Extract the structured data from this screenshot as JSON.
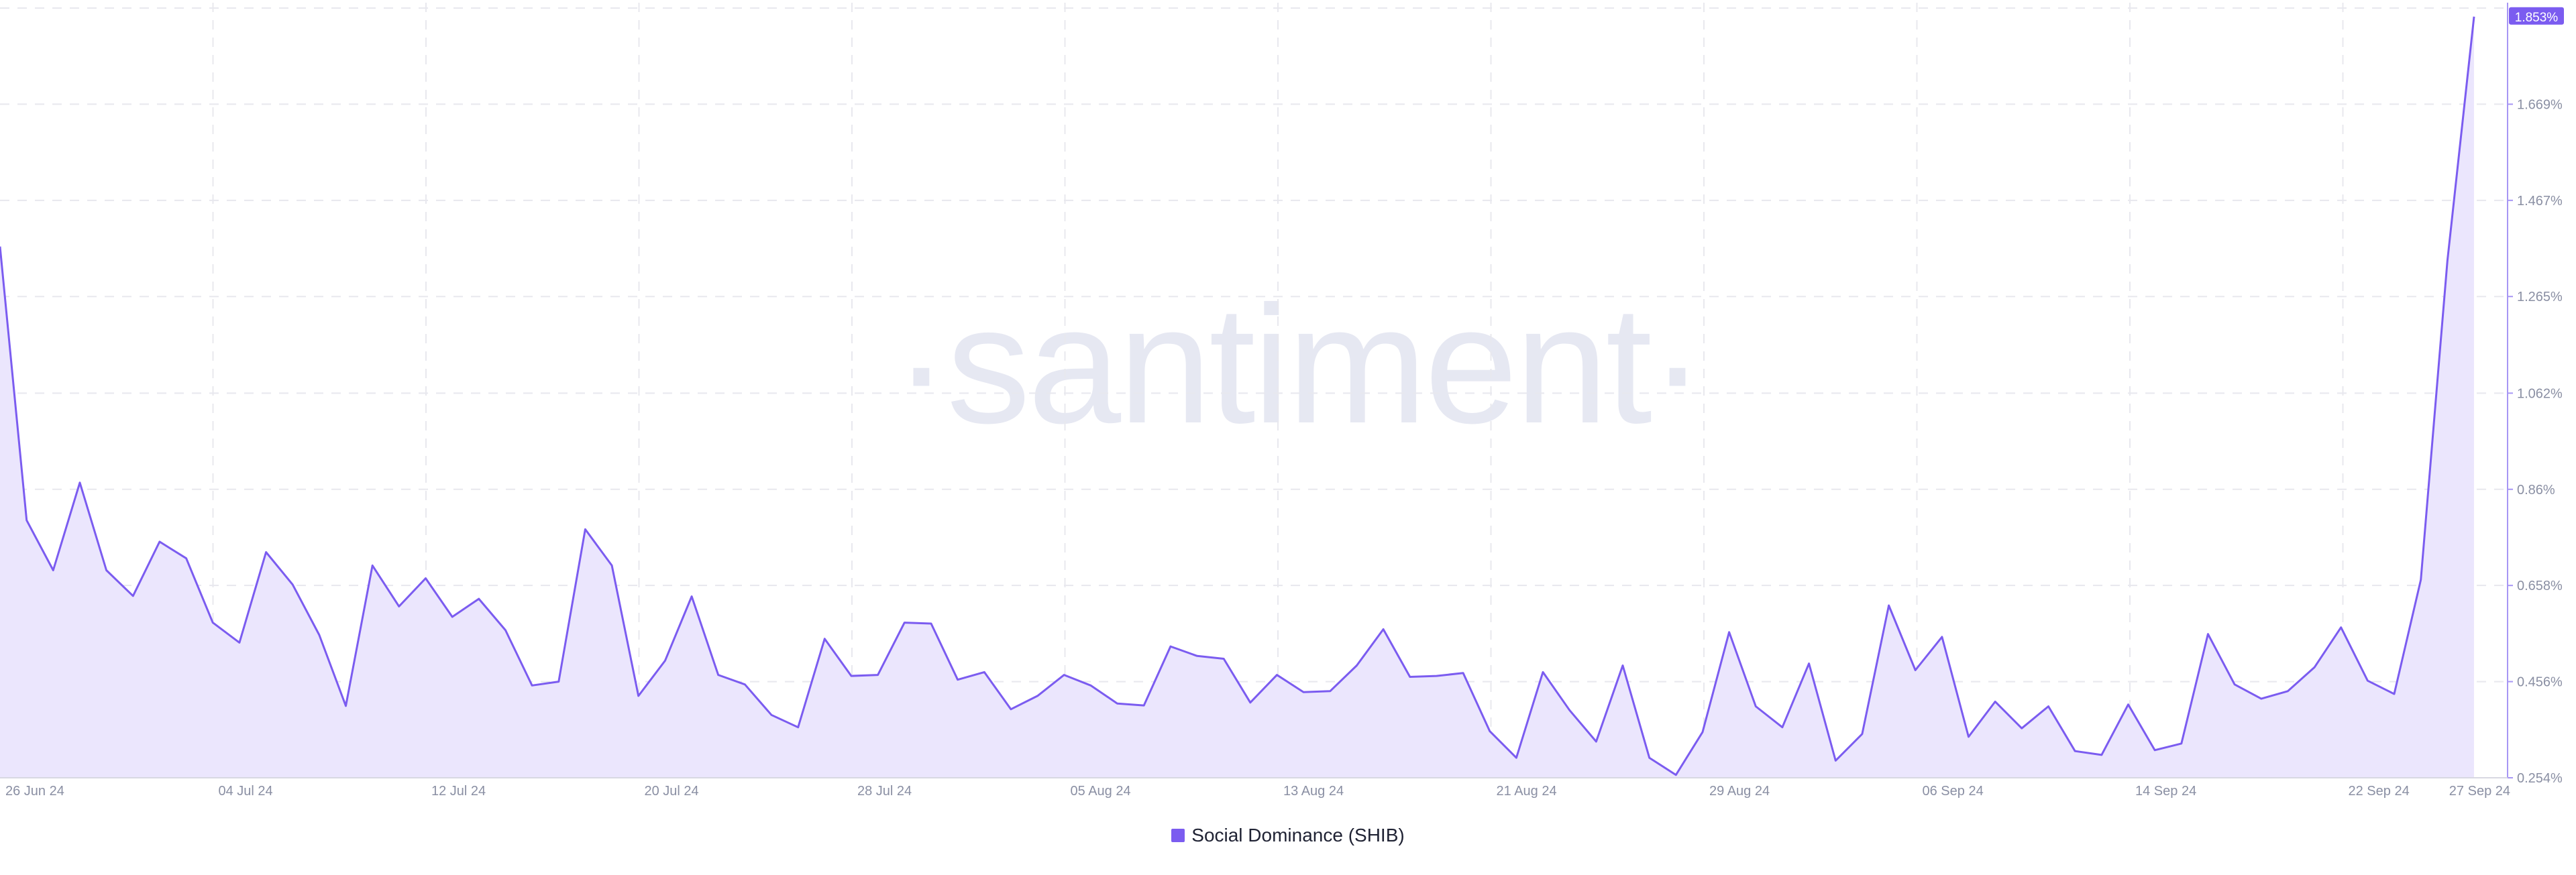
{
  "watermark": "·santiment·",
  "chart_data": {
    "type": "area",
    "title": "",
    "xlabel": "",
    "ylabel": "",
    "x_tick_labels": [
      "26 Jun 24",
      "04 Jul 24",
      "12 Jul 24",
      "20 Jul 24",
      "28 Jul 24",
      "05 Aug 24",
      "13 Aug 24",
      "21 Aug 24",
      "29 Aug 24",
      "06 Sep 24",
      "14 Sep 24",
      "22 Sep 24",
      "27 Sep 24"
    ],
    "y_tick_labels": [
      "0.254%",
      "0.456%",
      "0.658%",
      "0.86%",
      "1.062%",
      "1.265%",
      "1.467%",
      "1.669%"
    ],
    "y_tick_values": [
      0.254,
      0.456,
      0.658,
      0.86,
      1.062,
      1.265,
      1.467,
      1.669
    ],
    "ylim": [
      0.254,
      1.871
    ],
    "current_value_label": "1.853%",
    "grid": true,
    "legend_position": "bottom-center",
    "series": [
      {
        "name": "Social Dominance (SHIB)",
        "color": "#7b5cf0",
        "fill": "#ebe6fd",
        "values": [
          1.37,
          0.795,
          0.69,
          0.874,
          0.69,
          0.636,
          0.75,
          0.715,
          0.58,
          0.538,
          0.728,
          0.66,
          0.554,
          0.405,
          0.7,
          0.614,
          0.673,
          0.592,
          0.63,
          0.564,
          0.448,
          0.456,
          0.776,
          0.7,
          0.426,
          0.5,
          0.635,
          0.47,
          0.45,
          0.386,
          0.36,
          0.546,
          0.468,
          0.47,
          0.58,
          0.578,
          0.46,
          0.476,
          0.398,
          0.426,
          0.47,
          0.448,
          0.41,
          0.406,
          0.53,
          0.51,
          0.504,
          0.412,
          0.47,
          0.434,
          0.436,
          0.49,
          0.566,
          0.466,
          0.468,
          0.474,
          0.352,
          0.296,
          0.476,
          0.396,
          0.33,
          0.49,
          0.296,
          0.26,
          0.35,
          0.56,
          0.404,
          0.36,
          0.494,
          0.29,
          0.346,
          0.616,
          0.48,
          0.55,
          0.34,
          0.414,
          0.358,
          0.404,
          0.31,
          0.302,
          0.408,
          0.312,
          0.326,
          0.556,
          0.45,
          0.42,
          0.436,
          0.486,
          0.57,
          0.458,
          0.43,
          0.67,
          1.34,
          1.853
        ]
      }
    ]
  }
}
